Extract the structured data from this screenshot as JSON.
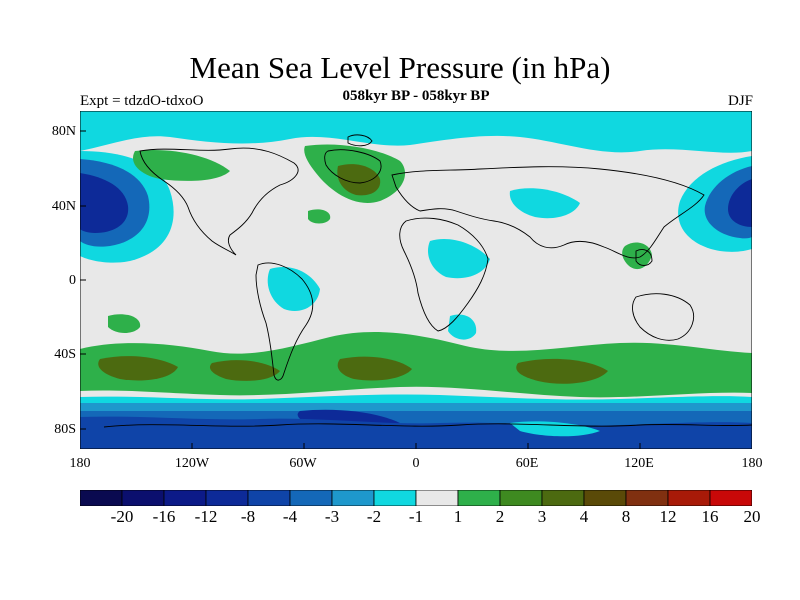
{
  "title": "Mean Sea Level Pressure (in hPa)",
  "subtitle": "058kyr BP - 058kyr BP",
  "experiment": "Expt = tdzdO-tdxoO",
  "season": "DJF",
  "lat_ticks": [
    "80N",
    "40N",
    "0",
    "40S",
    "80S"
  ],
  "lon_ticks": [
    "180",
    "120W",
    "60W",
    "0",
    "60E",
    "120E",
    "180"
  ],
  "colorbar": {
    "labels": [
      "-20",
      "-16",
      "-12",
      "-8",
      "-4",
      "-3",
      "-2",
      "-1",
      "1",
      "2",
      "3",
      "4",
      "8",
      "12",
      "16",
      "20"
    ],
    "colors": [
      "#0a0a50",
      "#0b0f6e",
      "#0c1a88",
      "#0d2a98",
      "#0f44a8",
      "#1468b8",
      "#1e98cc",
      "#10d8e0",
      "#e8e8e8",
      "#2eb04a",
      "#3e8a20",
      "#4c6a10",
      "#5a4a08",
      "#803010",
      "#a81a08",
      "#c80808"
    ]
  },
  "map_colors": {
    "background": "#e8e8e8",
    "land_outline": "#000000"
  }
}
